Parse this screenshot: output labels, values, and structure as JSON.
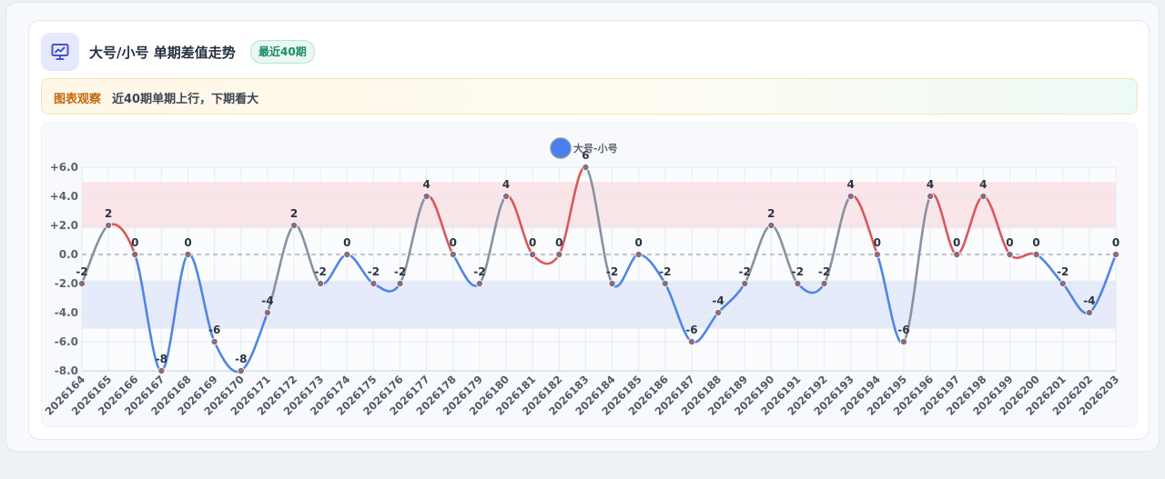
{
  "header": {
    "title": "大号/小号 单期差值走势",
    "badge": "最近40期",
    "icon": "chart-presentation-icon"
  },
  "note": {
    "label": "图表观察",
    "text": "近40期单期上行，下期看大"
  },
  "chart_data": {
    "type": "line",
    "categories": [
      "2026164",
      "2026165",
      "2026166",
      "2026167",
      "2026168",
      "2026169",
      "2026170",
      "2026171",
      "2026172",
      "2026173",
      "2026174",
      "2026175",
      "2026176",
      "2026177",
      "2026178",
      "2026179",
      "2026180",
      "2026181",
      "2026182",
      "2026183",
      "2026184",
      "2026185",
      "2026186",
      "2026187",
      "2026188",
      "2026189",
      "2026190",
      "2026191",
      "2026192",
      "2026193",
      "2026194",
      "2026195",
      "2026196",
      "2026197",
      "2026198",
      "2026199",
      "2026200",
      "2026201",
      "2026202",
      "2026203"
    ],
    "series": [
      {
        "name": "大号-小号",
        "values": [
          -2,
          2,
          0,
          -8,
          0,
          -6,
          -8,
          -4,
          2,
          -2,
          0,
          -2,
          -2,
          4,
          0,
          -2,
          4,
          0,
          0,
          6,
          -2,
          0,
          -2,
          -6,
          -4,
          -2,
          2,
          -2,
          -2,
          4,
          0,
          -6,
          4,
          0,
          4,
          0,
          0,
          -2,
          -4,
          0
        ],
        "data_labels": [
          "-2",
          "2",
          "0",
          "-8",
          "0",
          "-6",
          "-8",
          "-4",
          "2",
          "-2",
          "0",
          "-2",
          "-2",
          "4",
          "0",
          "-2",
          "4",
          "0",
          "0",
          "6",
          "-2",
          "0",
          "-2",
          "-6",
          "-4",
          "-2",
          "2",
          "-2",
          "-2",
          "4",
          "0",
          "-6",
          "4",
          "0",
          "4",
          "0",
          "0",
          "-2",
          "-4",
          "0"
        ]
      }
    ],
    "y_ticks": [
      6,
      4,
      2,
      0,
      -2,
      -4,
      -6,
      -8
    ],
    "y_tick_labels": [
      "+6.0",
      "+4.0",
      "+2.0",
      "0.0",
      "-2.0",
      "-4.0",
      "-6.0",
      "-8.0"
    ],
    "ylim": [
      -8,
      6
    ],
    "bands": [
      {
        "from": 1.8,
        "to": 5.0,
        "color": "#f9e1e5"
      },
      {
        "from": -5.1,
        "to": -1.8,
        "color": "#e1e8f9"
      }
    ],
    "colors": {
      "up": "#d9585a",
      "down": "#4f86e3",
      "flat": "#8792a2",
      "legend": "#4a7fef",
      "point": "#8b6b7e"
    },
    "grid": true,
    "legend_position": "top-center"
  }
}
